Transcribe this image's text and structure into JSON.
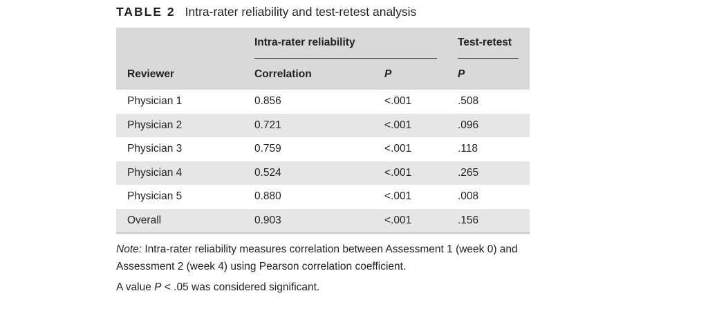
{
  "caption": {
    "label": "TABLE 2",
    "title": "Intra-rater reliability and test-retest analysis"
  },
  "table": {
    "group_headers": {
      "intra": "Intra-rater reliability",
      "test_retest": "Test-retest"
    },
    "columns": {
      "reviewer": "Reviewer",
      "correlation": "Correlation",
      "p_intra": "P",
      "p_retest": "P"
    },
    "rows": [
      {
        "reviewer": "Physician 1",
        "correlation": "0.856",
        "p": "<.001",
        "retest_p": ".508"
      },
      {
        "reviewer": "Physician 2",
        "correlation": "0.721",
        "p": "<.001",
        "retest_p": ".096"
      },
      {
        "reviewer": "Physician 3",
        "correlation": "0.759",
        "p": "<.001",
        "retest_p": ".118"
      },
      {
        "reviewer": "Physician 4",
        "correlation": "0.524",
        "p": "<.001",
        "retest_p": ".265"
      },
      {
        "reviewer": "Physician 5",
        "correlation": "0.880",
        "p": "<.001",
        "retest_p": ".008"
      },
      {
        "reviewer": "Overall",
        "correlation": "0.903",
        "p": "<.001",
        "retest_p": ".156"
      }
    ]
  },
  "notes": {
    "note_label": "Note:",
    "note_text": " Intra-rater reliability measures correlation between Assessment 1 (week 0) and Assessment 2 (week 4) using Pearson correlation coefficient.",
    "sig_prefix": "A value ",
    "sig_var": "P",
    "sig_suffix": " < .05 was considered significant."
  }
}
